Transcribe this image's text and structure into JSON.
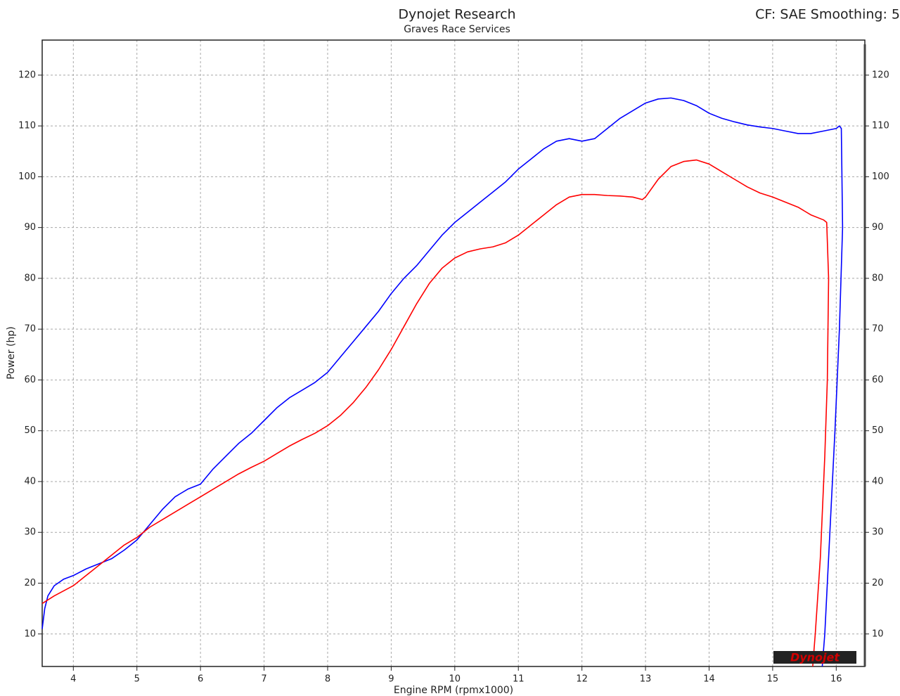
{
  "chart_data": {
    "type": "line",
    "title": "Dynojet Research",
    "subtitle": "Graves Race Services",
    "annotation": "CF: SAE Smoothing: 5",
    "logo": "Dynojet",
    "x_label": "Engine RPM (rpmx1000)",
    "y_label": "Power (hp)",
    "xlim": [
      3.51,
      16.45
    ],
    "ylim": [
      3.6,
      126.9
    ],
    "y2lim": [
      3.6,
      126.9
    ],
    "xticks": [
      4,
      5,
      6,
      7,
      8,
      9,
      10,
      11,
      12,
      13,
      14,
      15,
      16
    ],
    "yticks": [
      10,
      20,
      30,
      40,
      50,
      60,
      70,
      80,
      90,
      100,
      110,
      120
    ],
    "y2ticks": [
      10,
      20,
      30,
      40,
      50,
      60,
      70,
      80,
      90,
      100,
      110,
      120
    ],
    "grid": true,
    "series": [
      {
        "color": "#0000ff",
        "x": [
          3.51,
          3.55,
          3.6,
          3.7,
          3.85,
          4.0,
          4.2,
          4.4,
          4.6,
          4.8,
          5.0,
          5.2,
          5.4,
          5.6,
          5.8,
          6.0,
          6.2,
          6.4,
          6.6,
          6.8,
          7.0,
          7.2,
          7.4,
          7.6,
          7.8,
          8.0,
          8.2,
          8.4,
          8.6,
          8.8,
          9.0,
          9.2,
          9.4,
          9.6,
          9.8,
          10.0,
          10.2,
          10.4,
          10.6,
          10.8,
          11.0,
          11.2,
          11.4,
          11.6,
          11.8,
          12.0,
          12.2,
          12.4,
          12.6,
          12.8,
          13.0,
          13.2,
          13.4,
          13.6,
          13.8,
          14.0,
          14.2,
          14.4,
          14.6,
          14.8,
          15.0,
          15.2,
          15.4,
          15.6,
          15.8,
          16.0,
          16.05,
          16.08,
          16.1,
          16.05,
          15.98,
          15.9,
          15.82,
          15.78
        ],
        "values": [
          11,
          15,
          17.5,
          19.5,
          20.8,
          21.5,
          22.8,
          23.8,
          24.8,
          26.5,
          28.5,
          31.5,
          34.5,
          37,
          38.5,
          39.5,
          42.5,
          45,
          47.5,
          49.5,
          52,
          54.5,
          56.5,
          58,
          59.5,
          61.5,
          64.5,
          67.5,
          70.5,
          73.5,
          77,
          80,
          82.5,
          85.5,
          88.5,
          91,
          93,
          95,
          97,
          99,
          101.5,
          103.5,
          105.5,
          107,
          107.5,
          107,
          107.5,
          109.5,
          111.5,
          113,
          114.5,
          115.3,
          115.5,
          115,
          114,
          112.5,
          111.5,
          110.8,
          110.2,
          109.8,
          109.5,
          109,
          108.5,
          108.5,
          109,
          109.5,
          110,
          109.5,
          90,
          70,
          50,
          30,
          10,
          3.6
        ]
      },
      {
        "color": "#ff0000",
        "x": [
          3.51,
          3.7,
          4.0,
          4.2,
          4.4,
          4.6,
          4.8,
          5.0,
          5.2,
          5.4,
          5.6,
          5.8,
          6.0,
          6.2,
          6.4,
          6.6,
          6.8,
          7.0,
          7.2,
          7.4,
          7.6,
          7.8,
          8.0,
          8.2,
          8.4,
          8.6,
          8.8,
          9.0,
          9.2,
          9.4,
          9.6,
          9.8,
          10.0,
          10.2,
          10.4,
          10.6,
          10.8,
          11.0,
          11.2,
          11.4,
          11.6,
          11.8,
          12.0,
          12.2,
          12.4,
          12.6,
          12.8,
          12.95,
          13.0,
          13.2,
          13.4,
          13.6,
          13.8,
          14.0,
          14.2,
          14.4,
          14.6,
          14.8,
          15.0,
          15.2,
          15.4,
          15.6,
          15.8,
          15.85,
          15.88,
          15.86,
          15.82,
          15.75,
          15.67,
          15.63
        ],
        "values": [
          16,
          17.5,
          19.5,
          21.5,
          23.5,
          25.5,
          27.5,
          29,
          31,
          32.5,
          34,
          35.5,
          37,
          38.5,
          40,
          41.5,
          42.8,
          44,
          45.5,
          47,
          48.3,
          49.5,
          51,
          53,
          55.5,
          58.5,
          62,
          66,
          70.5,
          75,
          79,
          82,
          84,
          85.2,
          85.8,
          86.2,
          87,
          88.5,
          90.5,
          92.5,
          94.5,
          96,
          96.5,
          96.5,
          96.3,
          96.2,
          96,
          95.5,
          96,
          99.5,
          102,
          103,
          103.3,
          102.5,
          101,
          99.5,
          98,
          96.8,
          96,
          95,
          94,
          92.5,
          91.5,
          91,
          80,
          60,
          45,
          25,
          10,
          3.6
        ]
      }
    ]
  }
}
